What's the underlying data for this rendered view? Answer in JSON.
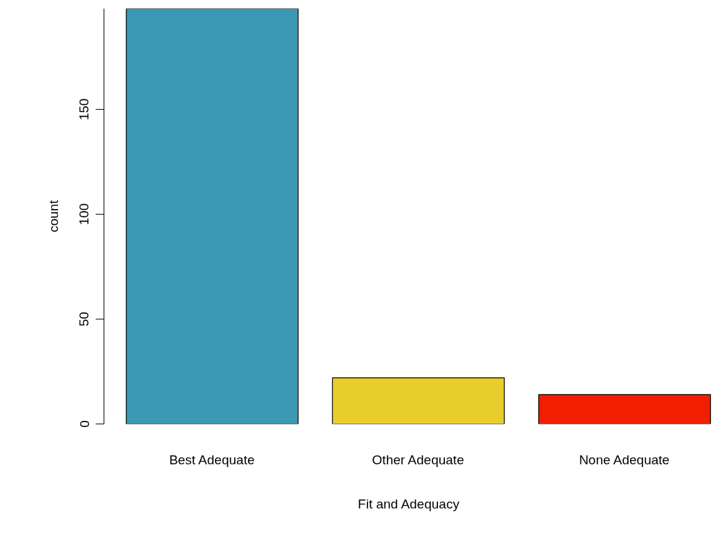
{
  "chart_data": {
    "type": "bar",
    "xlabel": "Fit and Adequacy",
    "ylabel": "count",
    "categories": [
      "Best Adequate",
      "Other Adequate",
      "None Adequate"
    ],
    "values": [
      198,
      22,
      14
    ],
    "colors": [
      "#3c99b3",
      "#e9cd2d",
      "#f21e02"
    ],
    "ylim": [
      0,
      198
    ],
    "yticks": [
      0,
      50,
      100,
      150
    ],
    "grid": false
  }
}
